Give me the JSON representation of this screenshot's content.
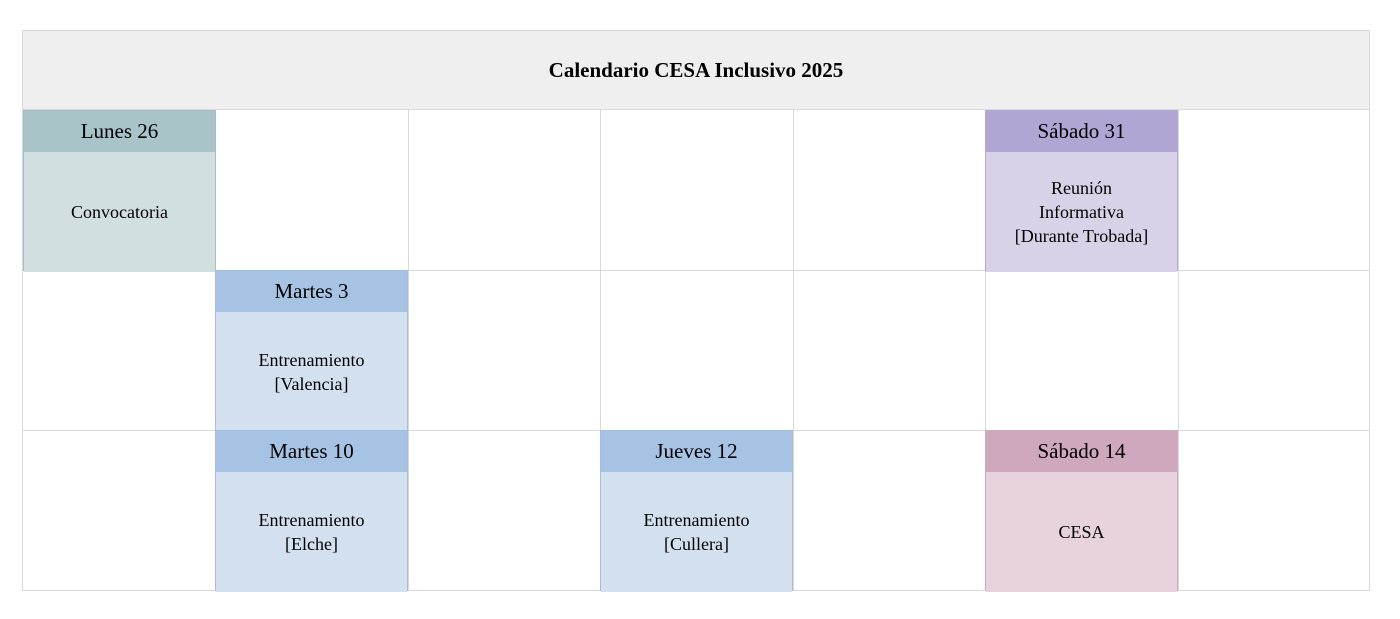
{
  "title": "Calendario CESA Inclusivo 2025",
  "events": [
    {
      "day": "Lunes 26",
      "text": "Convocatoria",
      "header_color": "#a8c4c8",
      "body_color": "#d2dfe1",
      "border_color": "#a6bdc1"
    },
    {
      "day": "Sábado 31",
      "text": "Reunión\nInformativa\n[Durante Trobada]",
      "header_color": "#b1a5d4",
      "body_color": "#d8d2e8",
      "border_color": "#b3a9d3"
    },
    {
      "day": "Martes 3",
      "text": "Entrenamiento\n[Valencia]",
      "header_color": "#a7c3e4",
      "body_color": "#d3e0f0",
      "border_color": "#a3bdda"
    },
    {
      "day": "Martes 10",
      "text": "Entrenamiento\n[Elche]",
      "header_color": "#a7c3e4",
      "body_color": "#d3e0f0",
      "border_color": "#a3bdda"
    },
    {
      "day": "Jueves 12",
      "text": "Entrenamiento\n[Cullera]",
      "header_color": "#a7c3e4",
      "body_color": "#d3e0f0",
      "border_color": "#a3bdda"
    },
    {
      "day": "Sábado 14",
      "text": "CESA",
      "header_color": "#d0a8bd",
      "body_color": "#e7d2dd",
      "border_color": "#cdaabd"
    }
  ]
}
